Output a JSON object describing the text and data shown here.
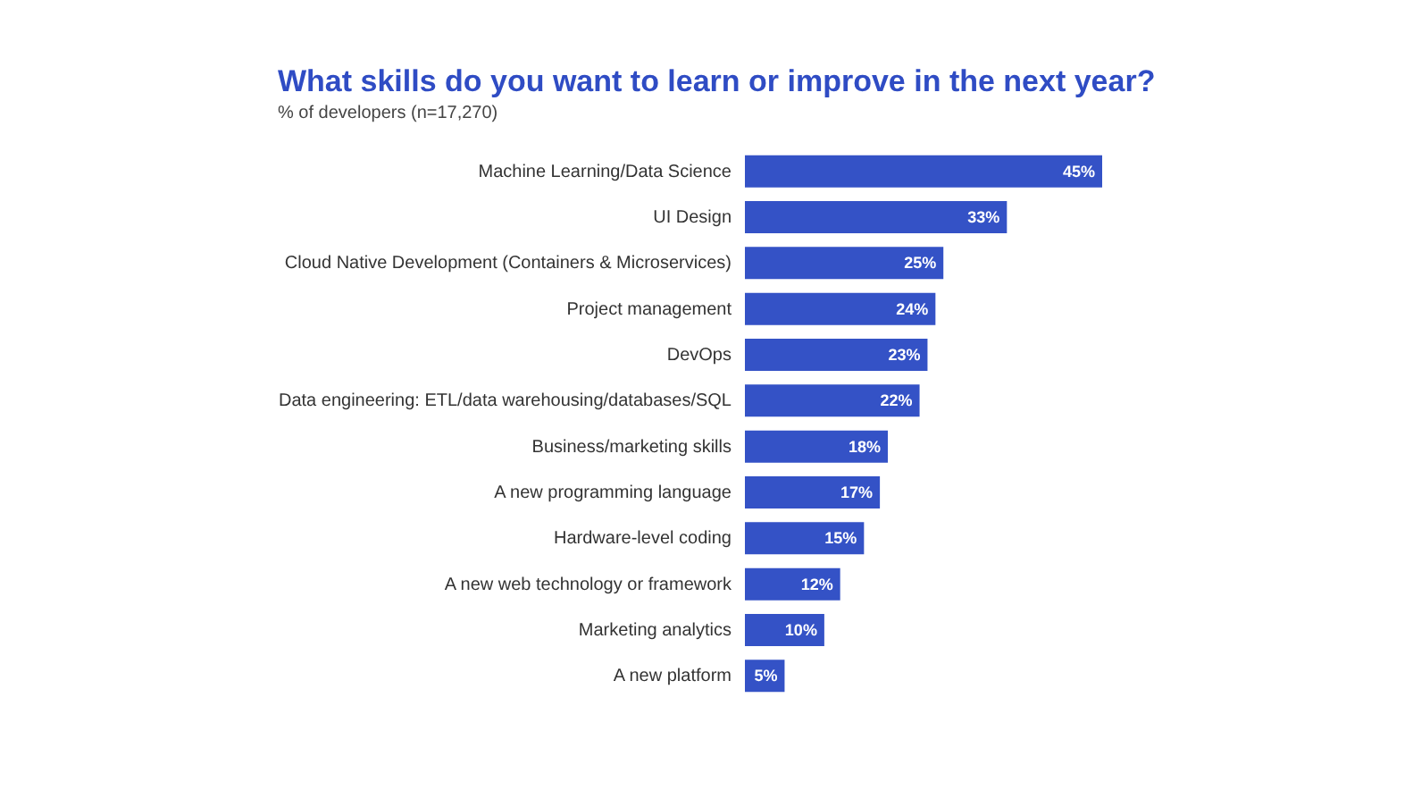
{
  "chart_data": {
    "type": "bar",
    "orientation": "horizontal",
    "title": "What skills do you want to learn or improve in the next year?",
    "subtitle": "% of developers (n=17,270)",
    "categories": [
      "Machine Learning/Data Science",
      "UI Design",
      "Cloud Native Development (Containers & Microservices)",
      "Project management",
      "DevOps",
      "Data engineering: ETL/data warehousing/databases/SQL",
      "Business/marketing skills",
      "A new programming language",
      "Hardware-level coding",
      "A new web technology or framework",
      "Marketing analytics",
      "A new platform"
    ],
    "values": [
      45,
      33,
      25,
      24,
      23,
      22,
      18,
      17,
      15,
      12,
      10,
      5
    ],
    "value_labels": [
      "45%",
      "33%",
      "25%",
      "24%",
      "23%",
      "22%",
      "18%",
      "17%",
      "15%",
      "12%",
      "10%",
      "5%"
    ],
    "color": "#3452c6",
    "tick_labels": "y"
  }
}
